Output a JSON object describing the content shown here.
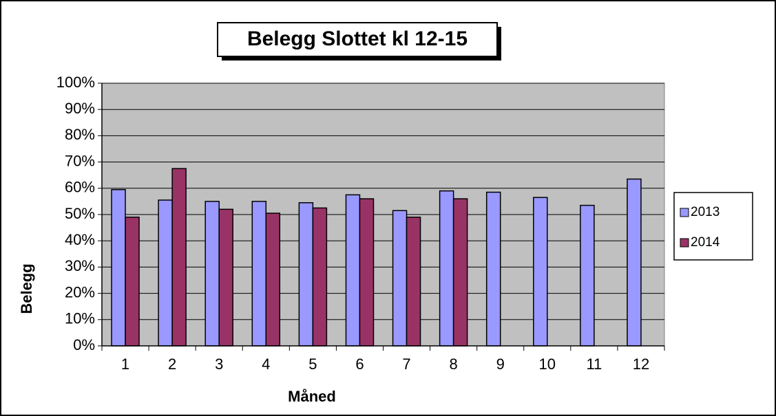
{
  "chart_data": {
    "type": "bar",
    "title": "Belegg Slottet kl 12-15",
    "xlabel": "Måned",
    "ylabel": "Belegg",
    "categories": [
      "1",
      "2",
      "3",
      "4",
      "5",
      "6",
      "7",
      "8",
      "9",
      "10",
      "11",
      "12"
    ],
    "series": [
      {
        "name": "2013",
        "color": "#9999ff",
        "values": [
          59.5,
          55.5,
          55,
          55,
          54.5,
          57.5,
          51.5,
          59,
          58.5,
          56.5,
          53.5,
          63.5
        ]
      },
      {
        "name": "2014",
        "color": "#993366",
        "values": [
          49,
          67.5,
          52,
          50.5,
          52.5,
          56,
          49,
          56,
          null,
          null,
          null,
          null
        ]
      }
    ],
    "ylim": [
      0,
      100
    ],
    "yticks": [
      {
        "value": 0,
        "label": "0%"
      },
      {
        "value": 10,
        "label": "10%"
      },
      {
        "value": 20,
        "label": "20%"
      },
      {
        "value": 30,
        "label": "30%"
      },
      {
        "value": 40,
        "label": "40%"
      },
      {
        "value": 50,
        "label": "50%"
      },
      {
        "value": 60,
        "label": "60%"
      },
      {
        "value": 70,
        "label": "70%"
      },
      {
        "value": 80,
        "label": "80%"
      },
      {
        "value": 90,
        "label": "90%"
      },
      {
        "value": 100,
        "label": "100%"
      }
    ],
    "grid": true,
    "plot_background": "#c0c0c0",
    "legend": "right"
  }
}
